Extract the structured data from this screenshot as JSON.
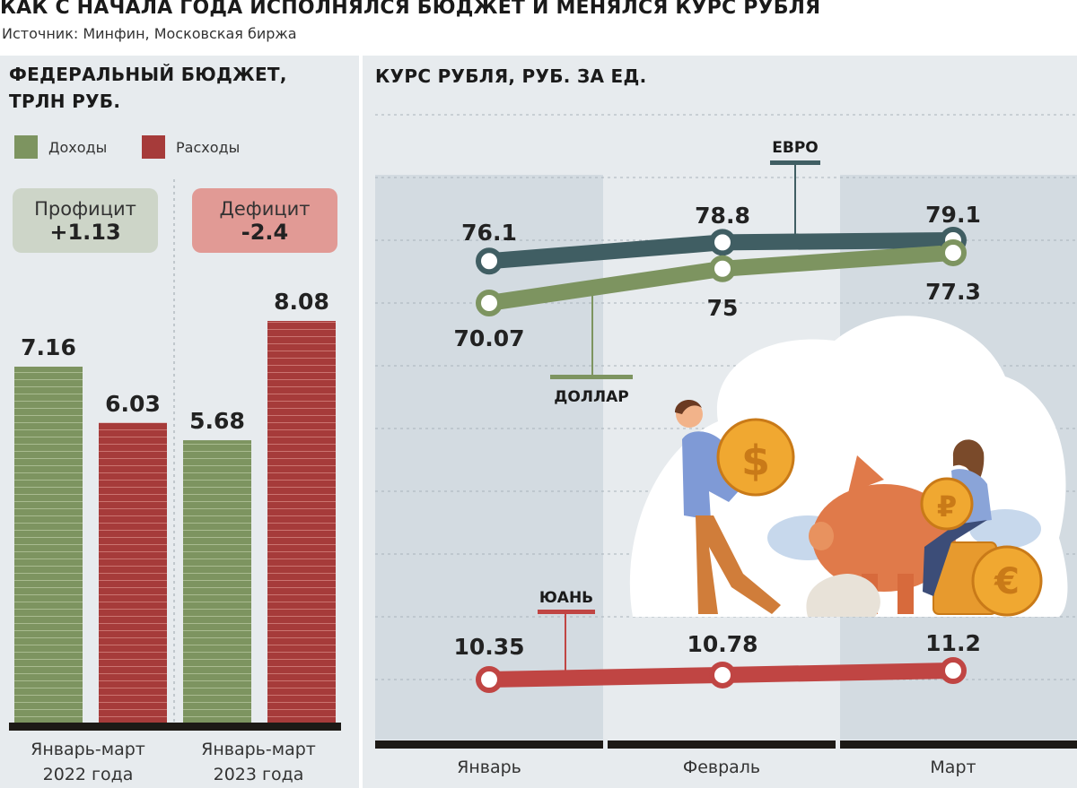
{
  "header": {
    "title": "КАК С НАЧАЛА ГОДА ИСПОЛНЯЛСЯ БЮДЖЕТ И МЕНЯЛСЯ КУРС РУБЛЯ",
    "source": "Источник: Минфин, Московская биржа"
  },
  "budget": {
    "title_line1": "ФЕДЕРАЛЬНЫЙ БЮДЖЕТ,",
    "title_line2": "ТРЛН РУБ.",
    "legend_income": "Доходы",
    "legend_expense": "Расходы",
    "badge1_label": "Профицит",
    "badge1_value": "+1.13",
    "badge2_label": "Дефицит",
    "badge2_value": "-2.4",
    "period1_line1": "Январь-март",
    "period1_line2": "2022 года",
    "period2_line1": "Январь-март",
    "period2_line2": "2023 года"
  },
  "rates": {
    "title": "КУРС РУБЛЯ, РУБ. ЗА ЕД."
  },
  "colors": {
    "income": "#7d9460",
    "expense": "#a63b3a",
    "euro": "#405e63",
    "dollar": "#7d9460",
    "yuan": "#c04543"
  },
  "chart_data": [
    {
      "type": "bar",
      "title": "ФЕДЕРАЛЬНЫЙ БЮДЖЕТ, ТРЛН РУБ.",
      "categories": [
        "Январь-март 2022 года",
        "Январь-март 2023 года"
      ],
      "series": [
        {
          "name": "Доходы",
          "values": [
            7.16,
            5.68
          ],
          "labels": [
            "7.16",
            "5.68"
          ]
        },
        {
          "name": "Расходы",
          "values": [
            6.03,
            8.08
          ],
          "labels": [
            "6.03",
            "8.08"
          ]
        }
      ],
      "ylim": [
        0,
        8.6
      ]
    },
    {
      "type": "line",
      "title": "КУРС РУБЛЯ, РУБ. ЗА ЕД.",
      "x": [
        "Январь",
        "Февраль",
        "Март"
      ],
      "series": [
        {
          "name": "ЕВРО",
          "values": [
            76.1,
            78.8,
            79.1
          ],
          "labels": [
            "76.1",
            "78.8",
            "79.1"
          ]
        },
        {
          "name": "ДОЛЛАР",
          "values": [
            70.07,
            75,
            77.3
          ],
          "labels": [
            "70.07",
            "75",
            "77.3"
          ]
        },
        {
          "name": "ЮАНЬ",
          "values": [
            10.35,
            10.78,
            11.2
          ],
          "labels": [
            "10.35",
            "10.78",
            "11.2"
          ]
        }
      ]
    }
  ]
}
